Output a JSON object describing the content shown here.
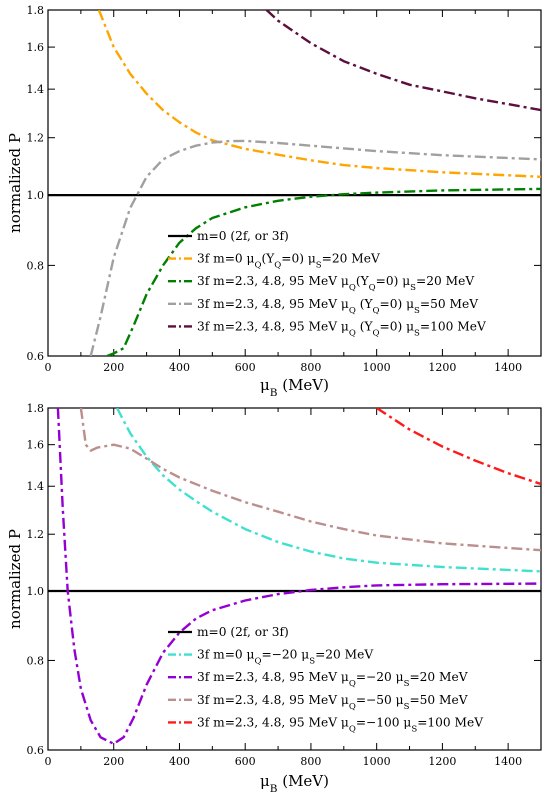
{
  "colors": {
    "black": "#000000",
    "orange": "#FFA500",
    "green": "#008000",
    "gray": "#A0A0A0",
    "maroon": "#5A0F3C",
    "cyan": "#40E0D0",
    "purple": "#9400D3",
    "tan": "#BC8F8F",
    "red": "#FF1A1A"
  },
  "chart_data": [
    {
      "type": "line",
      "xlabel": "μ_B (MeV)",
      "ylabel": "normalized P",
      "xlim": [
        0,
        1500
      ],
      "ylim": [
        0.6,
        1.8
      ],
      "yscale": "log",
      "xticks": [
        0,
        200,
        400,
        600,
        800,
        1000,
        1200,
        1400
      ],
      "yticks": [
        0.6,
        0.8,
        1.0,
        1.2,
        1.4,
        1.6,
        1.8
      ],
      "ytick_labels": [
        "0.6",
        "0.8",
        "1.0",
        "1.2",
        "1.4",
        "1.6",
        "1.8"
      ],
      "legend_position": "bottom-right",
      "series": [
        {
          "name": "m=0 (2f, or 3f)",
          "color": "#000000",
          "style": "solid",
          "x": [
            0,
            1500
          ],
          "y": [
            1.0,
            1.0
          ]
        },
        {
          "name": "3f m=0 μ_Q(Y_Q=0) μ_S=20 MeV",
          "color": "#FFA500",
          "style": "dashdot",
          "x": [
            155,
            200,
            250,
            300,
            350,
            400,
            450,
            500,
            600,
            700,
            800,
            900,
            1000,
            1200,
            1500
          ],
          "y": [
            1.8,
            1.6,
            1.47,
            1.38,
            1.31,
            1.26,
            1.22,
            1.19,
            1.158,
            1.137,
            1.117,
            1.1,
            1.09,
            1.075,
            1.06
          ]
        },
        {
          "name": "3f m=2.3, 4.8, 95 MeV μ_Q(Y_Q=0) μ_S=20 MeV",
          "color": "#008000",
          "style": "dashdot",
          "x": [
            180,
            200,
            230,
            260,
            300,
            350,
            400,
            450,
            500,
            600,
            700,
            800,
            900,
            1000,
            1200,
            1500
          ],
          "y": [
            0.6,
            0.605,
            0.615,
            0.66,
            0.73,
            0.8,
            0.86,
            0.9,
            0.93,
            0.962,
            0.982,
            0.995,
            1.003,
            1.008,
            1.015,
            1.02
          ]
        },
        {
          "name": "3f m=2.3, 4.8, 95 MeV μ_Q (Y_Q=0) μ_S=50 MeV",
          "color": "#A0A0A0",
          "style": "dashdot",
          "x": [
            130,
            160,
            200,
            250,
            300,
            350,
            400,
            450,
            500,
            550,
            600,
            700,
            800,
            900,
            1000,
            1200,
            1500
          ],
          "y": [
            0.6,
            0.68,
            0.82,
            0.96,
            1.06,
            1.12,
            1.15,
            1.17,
            1.182,
            1.187,
            1.188,
            1.18,
            1.17,
            1.16,
            1.15,
            1.135,
            1.12
          ]
        },
        {
          "name": "3f m=2.3, 4.8, 95 MeV μ_Q (Y_Q=0) μ_S=100 MeV",
          "color": "#5A0F3C",
          "style": "dashdot",
          "x": [
            665,
            700,
            800,
            900,
            1000,
            1100,
            1200,
            1300,
            1400,
            1500
          ],
          "y": [
            1.8,
            1.74,
            1.62,
            1.53,
            1.47,
            1.42,
            1.39,
            1.36,
            1.335,
            1.31
          ]
        }
      ]
    },
    {
      "type": "line",
      "xlabel": "μ_B (MeV)",
      "ylabel": "normalized P",
      "xlim": [
        0,
        1500
      ],
      "ylim": [
        0.6,
        1.8
      ],
      "yscale": "log",
      "xticks": [
        0,
        200,
        400,
        600,
        800,
        1000,
        1200,
        1400
      ],
      "yticks": [
        0.6,
        0.8,
        1.0,
        1.2,
        1.4,
        1.6,
        1.8
      ],
      "ytick_labels": [
        "0.6",
        "0.8",
        "1.0",
        "1.2",
        "1.4",
        "1.6",
        "1.8"
      ],
      "legend_position": "bottom-right",
      "series": [
        {
          "name": "m=0 (2f, or 3f)",
          "color": "#000000",
          "style": "solid",
          "x": [
            0,
            1500
          ],
          "y": [
            1.0,
            1.0
          ]
        },
        {
          "name": "3f m=0 μ_Q=−20  μ_S=20 MeV",
          "color": "#40E0D0",
          "style": "dashdot",
          "x": [
            210,
            250,
            300,
            350,
            400,
            450,
            500,
            600,
            700,
            800,
            900,
            1000,
            1200,
            1500
          ],
          "y": [
            1.8,
            1.66,
            1.54,
            1.45,
            1.385,
            1.335,
            1.29,
            1.22,
            1.17,
            1.135,
            1.11,
            1.095,
            1.08,
            1.065
          ]
        },
        {
          "name": "3f m=2.3, 4.8, 95 MeV μ_Q=−20 μ_S=20 MeV",
          "color": "#9400D3",
          "style": "dashdot",
          "x": [
            30,
            45,
            60,
            80,
            100,
            130,
            160,
            200,
            230,
            260,
            300,
            350,
            400,
            450,
            500,
            600,
            700,
            800,
            900,
            1000,
            1200,
            1500
          ],
          "y": [
            1.8,
            1.3,
            1.0,
            0.83,
            0.73,
            0.66,
            0.625,
            0.612,
            0.625,
            0.665,
            0.74,
            0.82,
            0.875,
            0.915,
            0.94,
            0.97,
            0.99,
            1.003,
            1.012,
            1.018,
            1.022,
            1.024
          ]
        },
        {
          "name": "3f m=2.3, 4.8, 95 MeV μ_Q=−50 μ_S=50 MeV",
          "color": "#BC8F8F",
          "style": "dashdot",
          "x": [
            100,
            115,
            130,
            150,
            200,
            250,
            300,
            350,
            400,
            500,
            600,
            700,
            800,
            900,
            1000,
            1200,
            1500
          ],
          "y": [
            1.8,
            1.6,
            1.57,
            1.585,
            1.6,
            1.58,
            1.53,
            1.48,
            1.44,
            1.38,
            1.33,
            1.29,
            1.25,
            1.22,
            1.195,
            1.165,
            1.14
          ]
        },
        {
          "name": "3f m=2.3, 4.8, 95 MeV μ_Q=−100  μ_S=100 MeV",
          "color": "#FF1A1A",
          "style": "dashdot",
          "x": [
            1000,
            1100,
            1200,
            1300,
            1400,
            1500
          ],
          "y": [
            1.8,
            1.68,
            1.59,
            1.52,
            1.46,
            1.41
          ]
        }
      ]
    }
  ]
}
